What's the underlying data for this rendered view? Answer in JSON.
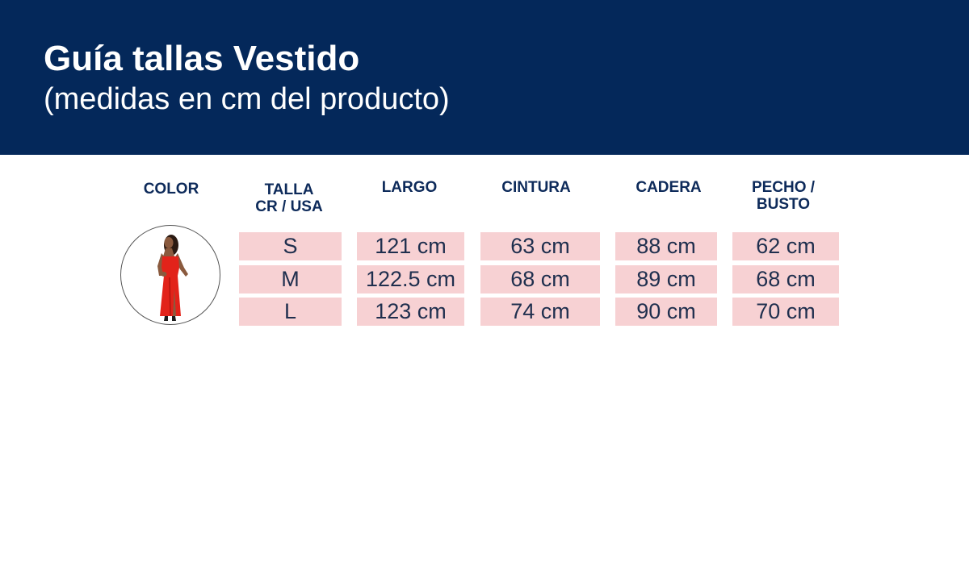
{
  "header": {
    "title": "Guía tallas Vestido",
    "subtitle": "(medidas en cm del producto)",
    "background_color": "#04285a"
  },
  "table": {
    "columns": {
      "color": "COLOR",
      "talla_line1": "TALLA",
      "talla_line2": "CR / USA",
      "largo": "LARGO",
      "cintura": "CINTURA",
      "cadera": "CADERA",
      "pecho_line1": "PECHO /",
      "pecho_line2": "BUSTO"
    },
    "rows": [
      {
        "talla": "S",
        "largo": "121 cm",
        "cintura": "63 cm",
        "cadera": "88 cm",
        "pecho": "62 cm"
      },
      {
        "talla": "M",
        "largo": "122.5 cm",
        "cintura": "68 cm",
        "cadera": "89 cm",
        "pecho": "68 cm"
      },
      {
        "talla": "L",
        "largo": "123 cm",
        "cintura": "74 cm",
        "cadera": "90 cm",
        "pecho": "70 cm"
      }
    ],
    "cell_color": "#f7d1d3",
    "header_text_color": "#0d2a5a"
  },
  "product_image": {
    "icon": "red-dress-model-photo",
    "dress_color": "#e2231a"
  }
}
